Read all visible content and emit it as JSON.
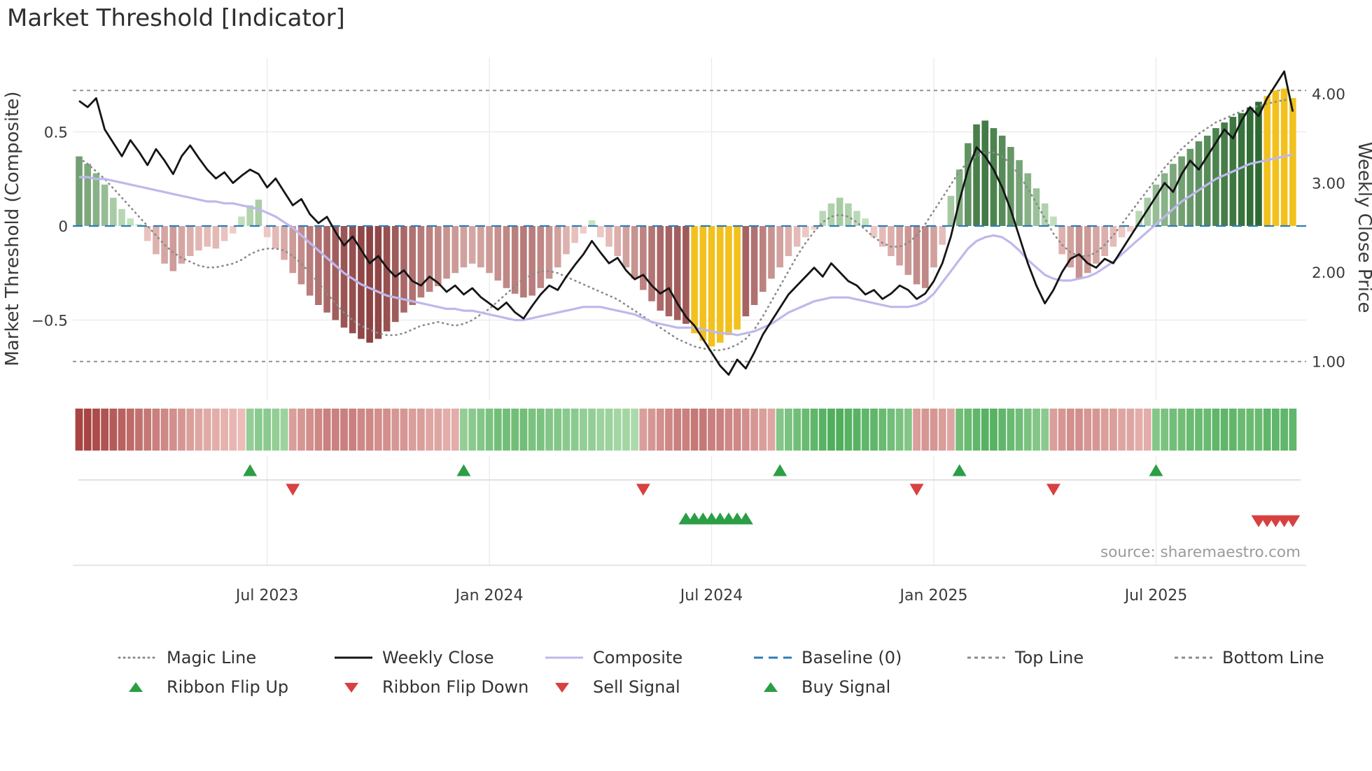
{
  "title": "Market Threshold [Indicator]",
  "source_text": "source: sharemaestro.com",
  "axes": {
    "left_label": "Market Threshold (Composite)",
    "right_label": "Weekly Close Price",
    "left_ticks": [
      {
        "label": "0.5",
        "value": 0.5
      },
      {
        "label": "0",
        "value": 0
      },
      {
        "label": "−0.5",
        "value": -0.5
      }
    ],
    "right_ticks": [
      {
        "label": "4.00",
        "value": 4.0
      },
      {
        "label": "3.00",
        "value": 3.0
      },
      {
        "label": "2.00",
        "value": 2.0
      },
      {
        "label": "1.00",
        "value": 1.0
      }
    ],
    "x_ticks": [
      {
        "label": "Jul 2023",
        "week": 22
      },
      {
        "label": "Jan 2024",
        "week": 48
      },
      {
        "label": "Jul 2024",
        "week": 74
      },
      {
        "label": "Jan 2025",
        "week": 100
      },
      {
        "label": "Jul 2025",
        "week": 126
      }
    ]
  },
  "legend": {
    "row1": [
      {
        "label": "Magic Line",
        "swatch": "line-dotted",
        "color": "#8a8a8a"
      },
      {
        "label": "Weekly Close",
        "swatch": "line",
        "color": "#151515"
      },
      {
        "label": "Composite",
        "swatch": "line",
        "color": "#beb8ec"
      },
      {
        "label": "Baseline (0)",
        "swatch": "line-dashed",
        "color": "#2f7cb5"
      },
      {
        "label": "Top Line",
        "swatch": "line-dashed-small",
        "color": "#8c8c8c"
      },
      {
        "label": "Bottom Line",
        "swatch": "line-dashed-small",
        "color": "#8c8c8c"
      }
    ],
    "row2": [
      {
        "label": "Ribbon Flip Up",
        "swatch": "triangle-up",
        "color": "#2c9e45"
      },
      {
        "label": "Ribbon Flip Down",
        "swatch": "triangle-down",
        "color": "#d94040"
      },
      {
        "label": "Sell Signal",
        "swatch": "triangle-down",
        "color": "#d94040"
      },
      {
        "label": "Buy Signal",
        "swatch": "triangle-up",
        "color": "#2c9e45"
      }
    ]
  },
  "chart_data": {
    "type": "bar+line",
    "title": "Market Threshold [Indicator]",
    "x_unit": "week",
    "weeks": 143,
    "x_tick_labels": [
      "Jul 2023",
      "Jan 2024",
      "Jul 2024",
      "Jan 2025",
      "Jul 2025"
    ],
    "ylim_left": [
      -0.85,
      0.88
    ],
    "ylim_right": [
      0.5,
      4.6
    ],
    "baseline": 0,
    "top_line": 0.72,
    "bottom_line": -0.72,
    "grid": true,
    "legend_position": "bottom",
    "series": {
      "composite_bars": [
        0.37,
        0.33,
        0.28,
        0.22,
        0.15,
        0.09,
        0.04,
        0.01,
        -0.08,
        -0.15,
        -0.2,
        -0.24,
        -0.2,
        -0.16,
        -0.13,
        -0.11,
        -0.12,
        -0.08,
        -0.04,
        0.05,
        0.11,
        0.14,
        -0.06,
        -0.12,
        -0.18,
        -0.25,
        -0.31,
        -0.37,
        -0.42,
        -0.46,
        -0.5,
        -0.54,
        -0.57,
        -0.6,
        -0.62,
        -0.6,
        -0.56,
        -0.51,
        -0.46,
        -0.42,
        -0.38,
        -0.35,
        -0.32,
        -0.28,
        -0.25,
        -0.22,
        -0.2,
        -0.22,
        -0.25,
        -0.29,
        -0.33,
        -0.36,
        -0.38,
        -0.37,
        -0.33,
        -0.28,
        -0.22,
        -0.15,
        -0.09,
        -0.04,
        0.03,
        -0.06,
        -0.11,
        -0.16,
        -0.22,
        -0.28,
        -0.34,
        -0.4,
        -0.45,
        -0.48,
        -0.5,
        -0.52,
        -0.57,
        -0.61,
        -0.64,
        -0.62,
        -0.58,
        -0.55,
        -0.48,
        -0.42,
        -0.35,
        -0.28,
        -0.22,
        -0.16,
        -0.11,
        -0.06,
        -0.02,
        0.08,
        0.12,
        0.15,
        0.12,
        0.08,
        0.04,
        -0.06,
        -0.11,
        -0.16,
        -0.21,
        -0.26,
        -0.31,
        -0.33,
        -0.22,
        -0.1,
        0.16,
        0.3,
        0.44,
        0.54,
        0.56,
        0.52,
        0.48,
        0.42,
        0.35,
        0.28,
        0.2,
        0.12,
        0.05,
        -0.15,
        -0.22,
        -0.28,
        -0.25,
        -0.2,
        -0.16,
        -0.11,
        -0.06,
        -0.03,
        0.08,
        0.15,
        0.22,
        0.28,
        0.33,
        0.37,
        0.41,
        0.45,
        0.48,
        0.52,
        0.55,
        0.58,
        0.6,
        0.63,
        0.66,
        0.69,
        0.72,
        0.73,
        0.68
      ],
      "weekly_close": [
        3.92,
        3.85,
        3.95,
        3.6,
        3.45,
        3.3,
        3.48,
        3.35,
        3.2,
        3.38,
        3.25,
        3.1,
        3.3,
        3.42,
        3.28,
        3.15,
        3.05,
        3.12,
        3.0,
        3.08,
        3.15,
        3.1,
        2.95,
        3.05,
        2.9,
        2.75,
        2.82,
        2.65,
        2.55,
        2.62,
        2.45,
        2.3,
        2.4,
        2.25,
        2.1,
        2.18,
        2.05,
        1.95,
        2.02,
        1.9,
        1.85,
        1.95,
        1.88,
        1.78,
        1.85,
        1.75,
        1.82,
        1.72,
        1.65,
        1.58,
        1.66,
        1.55,
        1.48,
        1.62,
        1.75,
        1.85,
        1.8,
        1.95,
        2.08,
        2.2,
        2.35,
        2.22,
        2.1,
        2.16,
        2.02,
        1.92,
        1.97,
        1.85,
        1.76,
        1.82,
        1.65,
        1.5,
        1.4,
        1.25,
        1.1,
        0.95,
        0.85,
        1.02,
        0.92,
        1.1,
        1.3,
        1.45,
        1.6,
        1.75,
        1.85,
        1.95,
        2.05,
        1.95,
        2.1,
        2.0,
        1.9,
        1.85,
        1.75,
        1.8,
        1.7,
        1.76,
        1.85,
        1.8,
        1.7,
        1.76,
        1.9,
        2.1,
        2.4,
        2.8,
        3.15,
        3.4,
        3.3,
        3.15,
        2.95,
        2.7,
        2.4,
        2.1,
        1.85,
        1.65,
        1.8,
        2.0,
        2.15,
        2.2,
        2.1,
        2.05,
        2.15,
        2.1,
        2.25,
        2.4,
        2.55,
        2.7,
        2.85,
        3.0,
        2.9,
        3.1,
        3.25,
        3.15,
        3.3,
        3.45,
        3.6,
        3.5,
        3.7,
        3.85,
        3.75,
        3.95,
        4.1,
        4.25,
        3.8
      ],
      "composite_line": [
        0.26,
        0.26,
        0.25,
        0.25,
        0.24,
        0.23,
        0.22,
        0.21,
        0.2,
        0.19,
        0.18,
        0.17,
        0.16,
        0.15,
        0.14,
        0.13,
        0.13,
        0.12,
        0.12,
        0.11,
        0.1,
        0.09,
        0.07,
        0.05,
        0.02,
        -0.01,
        -0.05,
        -0.09,
        -0.13,
        -0.17,
        -0.21,
        -0.25,
        -0.28,
        -0.31,
        -0.33,
        -0.35,
        -0.37,
        -0.38,
        -0.39,
        -0.4,
        -0.41,
        -0.42,
        -0.43,
        -0.44,
        -0.44,
        -0.45,
        -0.45,
        -0.46,
        -0.47,
        -0.48,
        -0.49,
        -0.5,
        -0.5,
        -0.49,
        -0.48,
        -0.47,
        -0.46,
        -0.45,
        -0.44,
        -0.43,
        -0.43,
        -0.43,
        -0.44,
        -0.45,
        -0.46,
        -0.47,
        -0.49,
        -0.51,
        -0.52,
        -0.53,
        -0.54,
        -0.54,
        -0.54,
        -0.55,
        -0.56,
        -0.57,
        -0.57,
        -0.58,
        -0.57,
        -0.56,
        -0.54,
        -0.52,
        -0.49,
        -0.46,
        -0.44,
        -0.42,
        -0.4,
        -0.39,
        -0.38,
        -0.38,
        -0.38,
        -0.39,
        -0.4,
        -0.41,
        -0.42,
        -0.43,
        -0.43,
        -0.43,
        -0.42,
        -0.4,
        -0.36,
        -0.3,
        -0.24,
        -0.18,
        -0.12,
        -0.08,
        -0.06,
        -0.05,
        -0.06,
        -0.09,
        -0.13,
        -0.18,
        -0.22,
        -0.26,
        -0.28,
        -0.29,
        -0.29,
        -0.28,
        -0.27,
        -0.25,
        -0.22,
        -0.19,
        -0.15,
        -0.11,
        -0.07,
        -0.03,
        0.01,
        0.05,
        0.09,
        0.13,
        0.16,
        0.19,
        0.22,
        0.25,
        0.27,
        0.29,
        0.31,
        0.33,
        0.34,
        0.35,
        0.36,
        0.37,
        0.38
      ],
      "magic_line": [
        0.36,
        0.33,
        0.29,
        0.25,
        0.2,
        0.15,
        0.1,
        0.05,
        0.0,
        -0.05,
        -0.1,
        -0.14,
        -0.17,
        -0.19,
        -0.21,
        -0.22,
        -0.22,
        -0.21,
        -0.2,
        -0.18,
        -0.15,
        -0.13,
        -0.12,
        -0.12,
        -0.13,
        -0.16,
        -0.2,
        -0.25,
        -0.3,
        -0.36,
        -0.41,
        -0.46,
        -0.5,
        -0.53,
        -0.55,
        -0.57,
        -0.58,
        -0.58,
        -0.57,
        -0.55,
        -0.53,
        -0.52,
        -0.51,
        -0.52,
        -0.53,
        -0.52,
        -0.5,
        -0.47,
        -0.44,
        -0.4,
        -0.36,
        -0.32,
        -0.28,
        -0.26,
        -0.24,
        -0.24,
        -0.25,
        -0.27,
        -0.29,
        -0.31,
        -0.33,
        -0.35,
        -0.37,
        -0.39,
        -0.42,
        -0.45,
        -0.48,
        -0.51,
        -0.54,
        -0.57,
        -0.6,
        -0.62,
        -0.64,
        -0.65,
        -0.66,
        -0.66,
        -0.65,
        -0.63,
        -0.6,
        -0.55,
        -0.48,
        -0.4,
        -0.32,
        -0.24,
        -0.16,
        -0.09,
        -0.03,
        0.02,
        0.05,
        0.06,
        0.05,
        0.02,
        -0.02,
        -0.06,
        -0.09,
        -0.11,
        -0.11,
        -0.09,
        -0.05,
        0.01,
        0.08,
        0.15,
        0.22,
        0.29,
        0.34,
        0.37,
        0.39,
        0.39,
        0.37,
        0.33,
        0.27,
        0.2,
        0.12,
        0.04,
        -0.04,
        -0.1,
        -0.14,
        -0.16,
        -0.16,
        -0.14,
        -0.1,
        -0.05,
        0.01,
        0.07,
        0.13,
        0.19,
        0.25,
        0.31,
        0.36,
        0.41,
        0.45,
        0.49,
        0.52,
        0.55,
        0.57,
        0.59,
        0.61,
        0.62,
        0.64,
        0.65,
        0.66,
        0.67,
        0.67
      ]
    },
    "ribbon": [
      -0.9,
      -0.9,
      -0.85,
      -0.8,
      -0.75,
      -0.7,
      -0.65,
      -0.6,
      -0.55,
      -0.5,
      -0.45,
      -0.4,
      -0.35,
      -0.3,
      -0.25,
      -0.22,
      -0.2,
      -0.17,
      -0.14,
      -0.1,
      0.3,
      0.35,
      0.35,
      0.3,
      0.25,
      -0.3,
      -0.35,
      -0.4,
      -0.45,
      -0.5,
      -0.5,
      -0.5,
      -0.5,
      -0.45,
      -0.45,
      -0.4,
      -0.4,
      -0.35,
      -0.35,
      -0.3,
      -0.3,
      -0.25,
      -0.25,
      -0.2,
      -0.2,
      0.3,
      0.35,
      0.4,
      0.45,
      0.5,
      0.5,
      0.5,
      0.5,
      0.45,
      0.45,
      0.4,
      0.4,
      0.35,
      0.35,
      0.3,
      0.3,
      0.25,
      0.25,
      0.2,
      0.2,
      0.15,
      -0.3,
      -0.35,
      -0.4,
      -0.45,
      -0.5,
      -0.5,
      -0.55,
      -0.55,
      -0.5,
      -0.5,
      -0.45,
      -0.45,
      -0.4,
      -0.35,
      -0.3,
      -0.25,
      0.4,
      0.45,
      0.5,
      0.55,
      0.6,
      0.65,
      0.7,
      0.7,
      0.65,
      0.65,
      0.6,
      0.6,
      0.55,
      0.5,
      0.45,
      0.4,
      -0.3,
      -0.35,
      -0.35,
      -0.3,
      -0.25,
      0.5,
      0.55,
      0.6,
      0.65,
      0.65,
      0.6,
      0.55,
      0.5,
      0.45,
      0.4,
      0.35,
      -0.3,
      -0.35,
      -0.4,
      -0.4,
      -0.35,
      -0.35,
      -0.3,
      -0.3,
      -0.25,
      -0.25,
      -0.2,
      -0.2,
      0.4,
      0.45,
      0.5,
      0.5,
      0.55,
      0.55,
      0.55,
      0.6,
      0.6,
      0.6,
      0.55,
      0.55,
      0.55,
      0.6,
      0.6,
      0.6,
      0.6
    ],
    "gold_bar_weeks": [
      72,
      73,
      74,
      75,
      76,
      77,
      139,
      140,
      141,
      142
    ],
    "signals": {
      "ribbon_flip_up_weeks": [
        20,
        45,
        82,
        103,
        126
      ],
      "ribbon_flip_down_weeks": [
        25,
        66,
        98,
        114
      ],
      "buy_signal_weeks": [
        71,
        72,
        73,
        74,
        75,
        76,
        77,
        78
      ],
      "sell_signal_weeks": [
        138,
        139,
        140,
        141,
        142
      ]
    }
  },
  "colors": {
    "bar_green_light": "#cde8c8",
    "bar_green_dark": "#2d6a31",
    "bar_red_light": "#f6d5d1",
    "bar_red_dark": "#8e4242",
    "gold": "#f2c11e",
    "ribbon_green_light": "#c6e6c0",
    "ribbon_green_dark": "#2f9e41",
    "ribbon_red_light": "#f3cbc7",
    "ribbon_red_dark": "#a84444",
    "weekly_close": "#151515",
    "composite": "#beb8ec",
    "magic": "#8a8a8a",
    "baseline": "#2f7cb5",
    "band_lines": "#8c8c8c",
    "signal_up": "#2c9e45",
    "signal_down": "#d94040",
    "grid": "#e9e9e9",
    "text": "#3a3a3a",
    "muted_text": "#9a9a9a"
  }
}
